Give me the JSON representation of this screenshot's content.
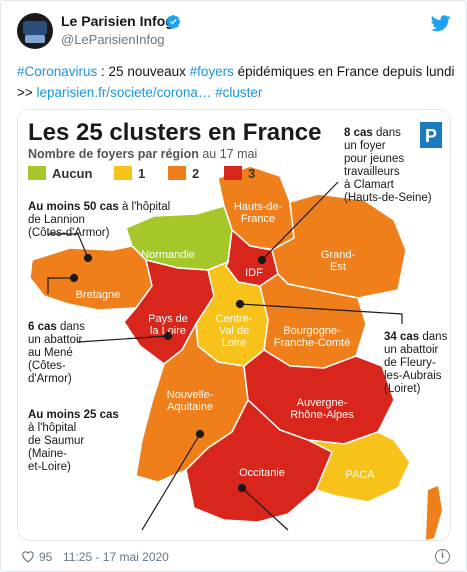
{
  "tweet": {
    "author": "Le Parisien Infog",
    "handle": "@LeParisienInfog",
    "text_parts": [
      {
        "text": "#Coronavirus",
        "link": true
      },
      {
        "text": " : 25 nouveaux ",
        "link": false
      },
      {
        "text": "#foyers",
        "link": true
      },
      {
        "text": " épidémiques en France depuis lundi >> ",
        "link": false
      },
      {
        "text": "leparisien.fr/societe/corona…",
        "link": true
      },
      {
        "text": " ",
        "link": false
      },
      {
        "text": "#cluster",
        "link": true
      }
    ],
    "likes": "95",
    "timestamp": "11:25 - 17 mai 2020",
    "info_glyph": "i"
  },
  "map": {
    "title": "Les 25 clusters en France",
    "subtitle_bold": "Nombre de foyers par région",
    "subtitle_date": " au 17 mai",
    "logo_letter": "P",
    "legend": [
      {
        "label": "Aucun",
        "color": "#a6c72a"
      },
      {
        "label": "1",
        "color": "#f7c21a"
      },
      {
        "label": "2",
        "color": "#ee7f1a"
      },
      {
        "label": "3",
        "color": "#d8261c"
      }
    ],
    "regions": {
      "hdf": "Hauts-de-France",
      "normandie": "Normandie",
      "idf": "IDF",
      "grand_est": "Grand-Est",
      "bretagne": "Bretagne",
      "pdl": "Pays de la Loire",
      "cvl": "Centre-Val de Loire",
      "bfc": "Bourgogne-Franche-Comté",
      "na": "Nouvelle-Aquitaine",
      "ara": "Auvergne-Rhône-Alpes",
      "occ": "Occitanie",
      "paca": "PACA"
    },
    "annotations": {
      "clamart_bold": "8 cas",
      "clamart_lines": [
        " dans",
        "un foyer",
        "pour jeunes",
        "travailleurs",
        "à Clamart",
        "(Hauts-de-Seine)"
      ],
      "lannion_bold": "Au moins 50 cas",
      "lannion_lines": [
        " à l'hôpital",
        "de Lannion",
        "(Côtes-d'Armor)"
      ],
      "mene_bold": "6 cas",
      "mene_lines": [
        " dans",
        "un abattoir",
        "au Mené",
        "(Côtes-",
        "d'Armor)"
      ],
      "fleury_bold": "34 cas",
      "fleury_lines": [
        " dans",
        "un abattoir",
        "de Fleury-",
        "les-Aubrais",
        "(Loiret)"
      ],
      "saumur_bold": "Au moins 25 cas",
      "saumur_lines": [
        "à l'hôpital",
        "de Saumur",
        "(Maine-",
        "et-Loire)"
      ]
    }
  }
}
